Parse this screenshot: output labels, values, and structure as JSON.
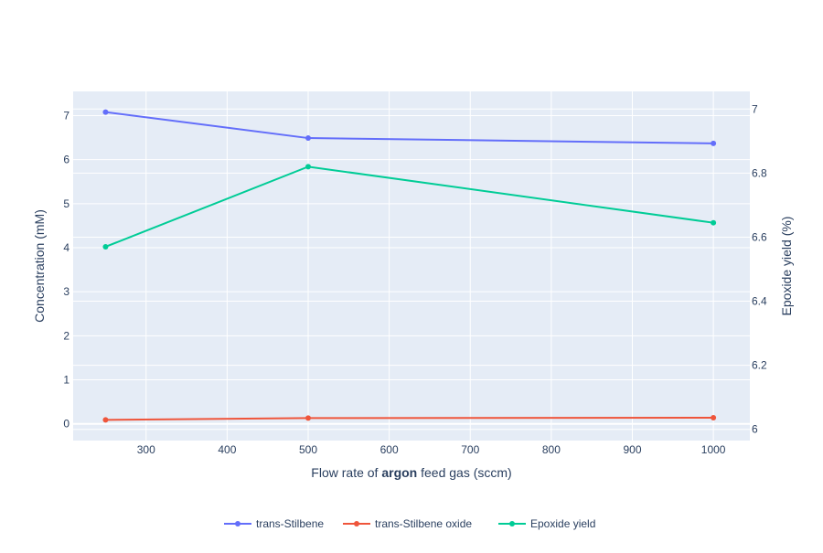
{
  "chart_data": {
    "type": "line",
    "x": [
      250,
      500,
      1000
    ],
    "xlabel": {
      "prefix": "Flow rate of ",
      "bold": "argon",
      "suffix": " feed gas (sccm)"
    },
    "ylabel": "Concentration (mM)",
    "y2label": "Epoxide yield (%)",
    "xlim": [
      210,
      1045
    ],
    "ylim": [
      -0.38,
      7.55
    ],
    "y2lim": [
      5.965,
      7.055
    ],
    "xticks": [
      300,
      400,
      500,
      600,
      700,
      800,
      900,
      1000
    ],
    "yticks": [
      0,
      1,
      2,
      3,
      4,
      5,
      6,
      7
    ],
    "y2ticks": [
      "6",
      "6.2",
      "6.4",
      "6.6",
      "6.8",
      "7"
    ],
    "grid": true,
    "legend_position": "bottom-center",
    "series": [
      {
        "name": "trans-Stilbene",
        "axis": "y",
        "color": "#636efa",
        "values": [
          7.08,
          6.49,
          6.37
        ]
      },
      {
        "name": "trans-Stilbene oxide",
        "axis": "y",
        "color": "#ef553b",
        "values": [
          0.09,
          0.13,
          0.14
        ]
      },
      {
        "name": "Epoxide yield",
        "axis": "y2",
        "color": "#00cc96",
        "values": [
          6.57,
          6.82,
          6.645
        ]
      }
    ]
  },
  "colors": {
    "plot_bg": "#e5ecf6",
    "grid": "#ffffff",
    "text": "#2a3f5f"
  }
}
